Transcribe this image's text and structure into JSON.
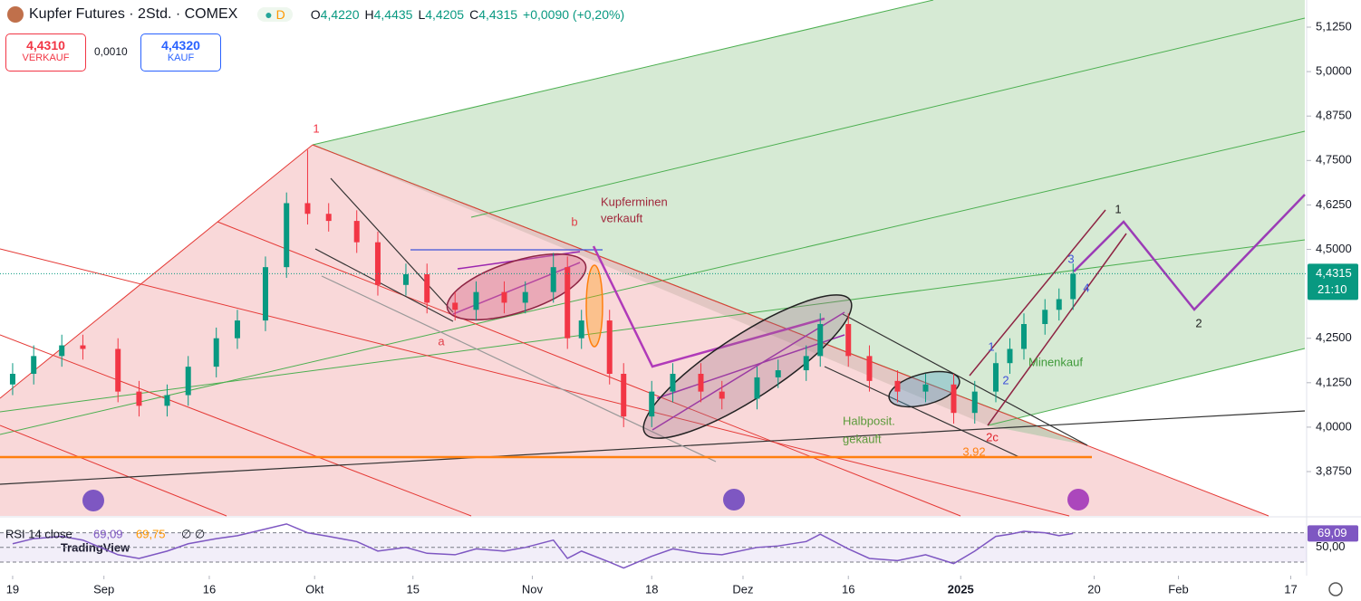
{
  "header": {
    "title": "Kupfer Futures · 2Std. · COMEX",
    "badge": "D",
    "ohlc": [
      {
        "label": "O",
        "value": "4,4220"
      },
      {
        "label": "H",
        "value": "4,4435"
      },
      {
        "label": "L",
        "value": "4,4205"
      },
      {
        "label": "C",
        "value": "4,4315"
      }
    ],
    "change": "+0,0090 (+0,20%)"
  },
  "trade": {
    "sell_price": "4,4310",
    "sell_label": "VERKAUF",
    "spread": "0,0010",
    "buy_price": "4,4320",
    "buy_label": "KAUF"
  },
  "logo": "TradingView",
  "annotations": [
    {
      "text": "1",
      "color": "#f23645"
    },
    {
      "text": "b",
      "color": "#e0404a"
    },
    {
      "text": "Kupferminen",
      "color": "#a0283c"
    },
    {
      "text": "verkauft",
      "color": "#a0283c"
    },
    {
      "text": "a",
      "color": "#e0404a"
    },
    {
      "text": "2c",
      "color": "#e0202a"
    },
    {
      "text": "Halbposit.",
      "color": "#5b9a3a"
    },
    {
      "text": "gekauft",
      "color": "#5b9a3a"
    },
    {
      "text": "Minenkauf",
      "color": "#3f9a3a"
    },
    {
      "text": "1",
      "color": "#222"
    },
    {
      "text": "2",
      "color": "#222"
    },
    {
      "text": "1",
      "color": "#3f51d9"
    },
    {
      "text": "2",
      "color": "#3f51d9"
    },
    {
      "text": "3",
      "color": "#3f51d9"
    },
    {
      "text": "4",
      "color": "#3f51d9"
    },
    {
      "text": "3,92",
      "color": "#ff7f0e"
    }
  ],
  "chart_data": [
    {
      "type": "candlestick",
      "up_color": "#089981",
      "down_color": "#f23645",
      "x": [
        0,
        3,
        7,
        10,
        15,
        18,
        22,
        25,
        29,
        32,
        36,
        39,
        42,
        45,
        49,
        52,
        56,
        59,
        63,
        66,
        70,
        73,
        77,
        79,
        81,
        85,
        87,
        91,
        94,
        98,
        101,
        106,
        109,
        113,
        115,
        119,
        122,
        126,
        130,
        134,
        137,
        140,
        142,
        144,
        147,
        149,
        151
      ],
      "open": [
        4.12,
        4.15,
        4.2,
        4.23,
        4.22,
        4.1,
        4.06,
        4.09,
        4.17,
        4.25,
        4.3,
        4.45,
        4.63,
        4.6,
        4.58,
        4.52,
        4.4,
        4.43,
        4.35,
        4.33,
        4.38,
        4.35,
        4.38,
        4.45,
        4.25,
        4.3,
        4.15,
        4.03,
        4.1,
        4.15,
        4.1,
        4.08,
        4.14,
        4.16,
        4.2,
        4.29,
        4.2,
        4.13,
        4.1,
        4.12,
        4.04,
        4.1,
        4.18,
        4.22,
        4.29,
        4.33,
        4.36
      ],
      "high": [
        4.18,
        4.23,
        4.26,
        4.26,
        4.25,
        4.13,
        4.12,
        4.2,
        4.28,
        4.33,
        4.48,
        4.66,
        4.78,
        4.63,
        4.61,
        4.55,
        4.46,
        4.46,
        4.38,
        4.41,
        4.41,
        4.41,
        4.49,
        4.48,
        4.33,
        4.33,
        4.18,
        4.13,
        4.18,
        4.18,
        4.13,
        4.17,
        4.19,
        4.23,
        4.32,
        4.32,
        4.23,
        4.16,
        4.15,
        4.15,
        4.13,
        4.21,
        4.25,
        4.32,
        4.36,
        4.39,
        4.46
      ],
      "low": [
        4.09,
        4.12,
        4.17,
        4.19,
        4.07,
        4.03,
        4.03,
        4.06,
        4.14,
        4.22,
        4.27,
        4.42,
        4.57,
        4.55,
        4.49,
        4.37,
        4.37,
        4.32,
        4.3,
        4.3,
        4.32,
        4.32,
        4.35,
        4.22,
        4.22,
        4.12,
        4.0,
        4.0,
        4.07,
        4.07,
        4.05,
        4.05,
        4.11,
        4.13,
        4.17,
        4.17,
        4.1,
        4.07,
        4.07,
        4.01,
        4.01,
        4.07,
        4.15,
        4.19,
        4.26,
        4.3,
        4.33
      ],
      "close": [
        4.15,
        4.2,
        4.23,
        4.22,
        4.1,
        4.06,
        4.09,
        4.17,
        4.25,
        4.3,
        4.45,
        4.63,
        4.6,
        4.58,
        4.52,
        4.4,
        4.43,
        4.35,
        4.33,
        4.38,
        4.35,
        4.38,
        4.45,
        4.25,
        4.3,
        4.15,
        4.03,
        4.1,
        4.15,
        4.1,
        4.08,
        4.14,
        4.16,
        4.2,
        4.29,
        4.2,
        4.13,
        4.1,
        4.12,
        4.04,
        4.1,
        4.18,
        4.22,
        4.29,
        4.33,
        4.36,
        4.4315
      ],
      "xlim": [
        -1.8,
        184
      ],
      "ylim": [
        3.7503,
        5.2014
      ],
      "xticks": [
        {
          "value": 0,
          "label": "19"
        },
        {
          "value": 13,
          "label": "Sep"
        },
        {
          "value": 28,
          "label": "16"
        },
        {
          "value": 43,
          "label": "Okt"
        },
        {
          "value": 57,
          "label": "15"
        },
        {
          "value": 74,
          "label": "Nov"
        },
        {
          "value": 91,
          "label": "18"
        },
        {
          "value": 104,
          "label": "Dez"
        },
        {
          "value": 119,
          "label": "16"
        },
        {
          "value": 135,
          "label": "2025"
        },
        {
          "value": 154,
          "label": "20"
        },
        {
          "value": 166,
          "label": "Feb"
        },
        {
          "value": 182,
          "label": "17"
        }
      ],
      "yticks": [
        {
          "value": 5.125,
          "label": "5,1250"
        },
        {
          "value": 5.0,
          "label": "5,0000"
        },
        {
          "value": 4.875,
          "label": "4,8750"
        },
        {
          "value": 4.75,
          "label": "4,7500"
        },
        {
          "value": 4.625,
          "label": "4,6250"
        },
        {
          "value": 4.5,
          "label": "4,5000"
        },
        {
          "value": 4.25,
          "label": "4,2500"
        },
        {
          "value": 4.125,
          "label": "4,1250"
        },
        {
          "value": 4.0,
          "label": "4,0000"
        },
        {
          "value": 3.875,
          "label": "3,8750"
        }
      ],
      "last_price": {
        "value": 4.4315,
        "label": "4,4315"
      },
      "countdown": "21:10"
    },
    {
      "type": "line",
      "title": "RSI 14 close",
      "legend_values": [
        "69,09",
        "69,75"
      ],
      "legend_extra": "∅ ∅",
      "color": "#7e57c2",
      "values": [
        55,
        62,
        65,
        60,
        40,
        35,
        45,
        55,
        62,
        66,
        75,
        82,
        70,
        65,
        58,
        45,
        50,
        42,
        40,
        48,
        45,
        50,
        60,
        35,
        45,
        30,
        22,
        38,
        48,
        42,
        40,
        50,
        52,
        58,
        68,
        48,
        35,
        32,
        40,
        28,
        45,
        65,
        68,
        72,
        70,
        66,
        69.09
      ],
      "ylim": [
        14,
        88
      ],
      "levels": [
        30,
        70
      ],
      "yticks": [
        {
          "value": 50,
          "label": "50,00"
        }
      ],
      "last_value": {
        "value": 69.09,
        "label": "69,09"
      }
    }
  ]
}
